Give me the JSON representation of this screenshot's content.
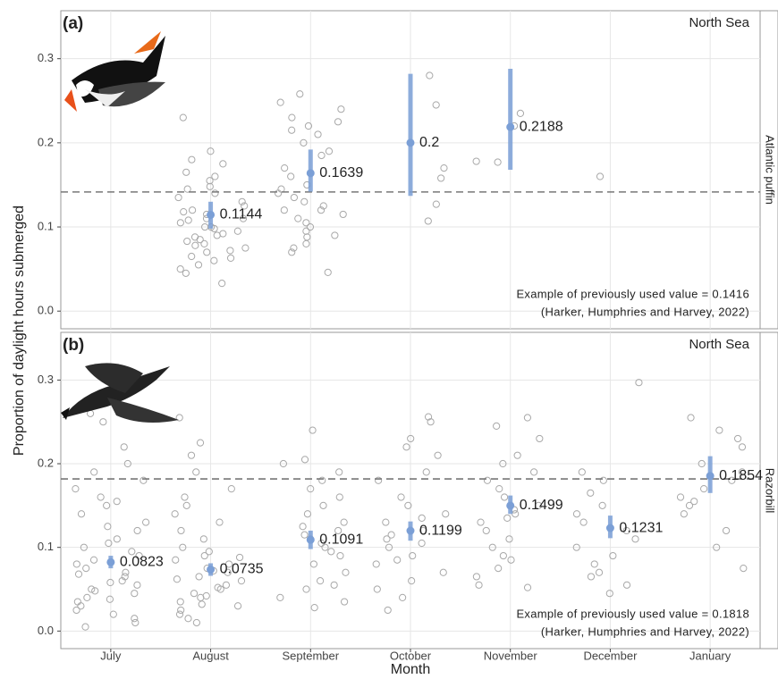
{
  "chart_data": {
    "type": "pointrange",
    "x_label": "Month",
    "y_label": "Proportion of daylight hours submerged",
    "categories": [
      "July",
      "August",
      "September",
      "October",
      "November",
      "December",
      "January"
    ],
    "ylim": [
      -0.021,
      0.357
    ],
    "yticks": [
      {
        "value": 0,
        "label": "0.0"
      },
      0.1,
      0.2,
      0.3
    ],
    "grid": true,
    "mean_color": "#7b9fd6",
    "point_color": "#a8a8a8",
    "ref_color": "#777777",
    "panels": [
      {
        "panel_label": "(a)",
        "region": "North Sea",
        "species": "Atlantic puffin",
        "means": [
          null,
          0.1144,
          0.1639,
          0.2,
          0.2188,
          null,
          null
        ],
        "lower": [
          null,
          0.098,
          0.142,
          0.137,
          0.168,
          null,
          null
        ],
        "upper": [
          null,
          0.13,
          0.192,
          0.282,
          0.288,
          null,
          null
        ],
        "ref_value": 0.1416,
        "ref_text": "Example of previously used value = 0.1416",
        "ref_source": "(Harker, Humphries and Harvey, 2022)",
        "points": [
          [],
          [
            0.148,
            0.14,
            0.23,
            0.12,
            0.11,
            0.1,
            0.105,
            0.095,
            0.09,
            0.08,
            0.078,
            0.063,
            0.033,
            0.05,
            0.19,
            0.18,
            0.175,
            0.165,
            0.16,
            0.155,
            0.145,
            0.135,
            0.13,
            0.125,
            0.118,
            0.115,
            0.11,
            0.108,
            0.1,
            0.098,
            0.092,
            0.088,
            0.083,
            0.075,
            0.07,
            0.065,
            0.06,
            0.055,
            0.045,
            0.072,
            0.085
          ],
          [
            0.258,
            0.248,
            0.24,
            0.23,
            0.225,
            0.22,
            0.215,
            0.21,
            0.2,
            0.19,
            0.185,
            0.17,
            0.16,
            0.15,
            0.145,
            0.14,
            0.13,
            0.125,
            0.12,
            0.115,
            0.11,
            0.105,
            0.1,
            0.095,
            0.09,
            0.088,
            0.08,
            0.075,
            0.07,
            0.046,
            0.12,
            0.135
          ],
          [
            0.28,
            0.245,
            0.17,
            0.158,
            0.127,
            0.107
          ],
          [
            0.235,
            0.22,
            0.178,
            0.177
          ],
          [
            0.16
          ],
          []
        ]
      },
      {
        "panel_label": "(b)",
        "region": "North Sea",
        "species": "Razorbill",
        "means": [
          0.0823,
          0.0735,
          0.1091,
          0.1199,
          0.1499,
          0.1231,
          0.1854
        ],
        "lower": [
          0.075,
          0.066,
          0.098,
          0.108,
          0.14,
          0.111,
          0.165
        ],
        "upper": [
          0.09,
          0.081,
          0.12,
          0.131,
          0.162,
          0.138,
          0.209
        ],
        "ref_value": 0.1818,
        "ref_text": "Example of previously used value = 0.1818",
        "ref_source": "(Harker, Humphries and Harvey, 2022)",
        "points": [
          [
            0.26,
            0.25,
            0.22,
            0.2,
            0.19,
            0.18,
            0.17,
            0.16,
            0.155,
            0.15,
            0.14,
            0.13,
            0.125,
            0.12,
            0.11,
            0.105,
            0.1,
            0.095,
            0.09,
            0.085,
            0.08,
            0.075,
            0.07,
            0.065,
            0.06,
            0.055,
            0.05,
            0.045,
            0.04,
            0.035,
            0.03,
            0.025,
            0.02,
            0.015,
            0.01,
            0.005,
            0.058,
            0.068,
            0.048,
            0.038
          ],
          [
            0.255,
            0.225,
            0.21,
            0.19,
            0.17,
            0.16,
            0.15,
            0.14,
            0.13,
            0.12,
            0.11,
            0.1,
            0.095,
            0.09,
            0.085,
            0.08,
            0.075,
            0.07,
            0.065,
            0.06,
            0.055,
            0.05,
            0.045,
            0.04,
            0.035,
            0.03,
            0.025,
            0.02,
            0.015,
            0.01,
            0.062,
            0.052,
            0.042,
            0.032,
            0.072,
            0.088
          ],
          [
            0.24,
            0.205,
            0.2,
            0.19,
            0.18,
            0.17,
            0.16,
            0.15,
            0.14,
            0.13,
            0.12,
            0.115,
            0.11,
            0.1,
            0.095,
            0.09,
            0.08,
            0.07,
            0.06,
            0.055,
            0.05,
            0.04,
            0.035,
            0.028,
            0.105,
            0.125
          ],
          [
            0.256,
            0.25,
            0.23,
            0.22,
            0.21,
            0.19,
            0.18,
            0.16,
            0.15,
            0.14,
            0.135,
            0.13,
            0.12,
            0.11,
            0.1,
            0.09,
            0.085,
            0.08,
            0.07,
            0.06,
            0.05,
            0.04,
            0.025,
            0.105,
            0.115
          ],
          [
            0.255,
            0.245,
            0.23,
            0.21,
            0.2,
            0.19,
            0.18,
            0.17,
            0.16,
            0.15,
            0.14,
            0.13,
            0.12,
            0.11,
            0.1,
            0.09,
            0.085,
            0.075,
            0.065,
            0.055,
            0.052,
            0.135,
            0.145
          ],
          [
            0.297,
            0.19,
            0.18,
            0.165,
            0.15,
            0.14,
            0.13,
            0.12,
            0.11,
            0.1,
            0.09,
            0.08,
            0.07,
            0.065,
            0.055,
            0.045
          ],
          [
            0.255,
            0.24,
            0.23,
            0.22,
            0.2,
            0.19,
            0.18,
            0.17,
            0.16,
            0.15,
            0.14,
            0.12,
            0.1,
            0.075,
            0.155
          ]
        ]
      }
    ]
  }
}
